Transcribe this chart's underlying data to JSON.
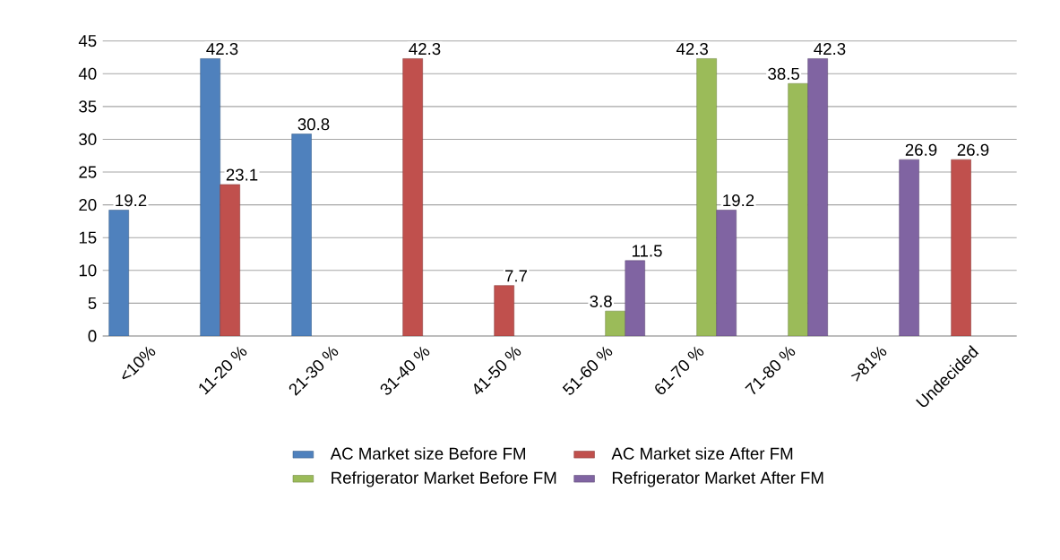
{
  "chart_data": {
    "type": "bar",
    "categories": [
      "<10%",
      "11-20 %",
      "21-30 %",
      "31-40 %",
      "41-50 %",
      "51-60 %",
      "61-70 %",
      "71-80 %",
      ">81%",
      "Undecided"
    ],
    "series": [
      {
        "name": "AC Market size Before FM",
        "color": "#4f81bd",
        "values": [
          19.2,
          42.3,
          30.8,
          null,
          null,
          null,
          null,
          null,
          null,
          null
        ]
      },
      {
        "name": "AC Market size After FM",
        "color": "#c0504d",
        "values": [
          null,
          23.1,
          null,
          42.3,
          7.7,
          null,
          null,
          null,
          null,
          26.9
        ]
      },
      {
        "name": "Refrigerator Market Before FM",
        "color": "#9bbb59",
        "values": [
          null,
          null,
          null,
          null,
          null,
          3.8,
          42.3,
          38.5,
          null,
          null
        ]
      },
      {
        "name": "Refrigerator Market After FM",
        "color": "#8064a2",
        "values": [
          null,
          null,
          null,
          null,
          null,
          11.5,
          19.2,
          42.3,
          26.9,
          null
        ]
      }
    ],
    "ylim": [
      0,
      45
    ],
    "yticks": [
      0,
      5,
      10,
      15,
      20,
      25,
      30,
      35,
      40,
      45
    ],
    "grid": "y",
    "legend": "bottom",
    "data_labels": true
  }
}
